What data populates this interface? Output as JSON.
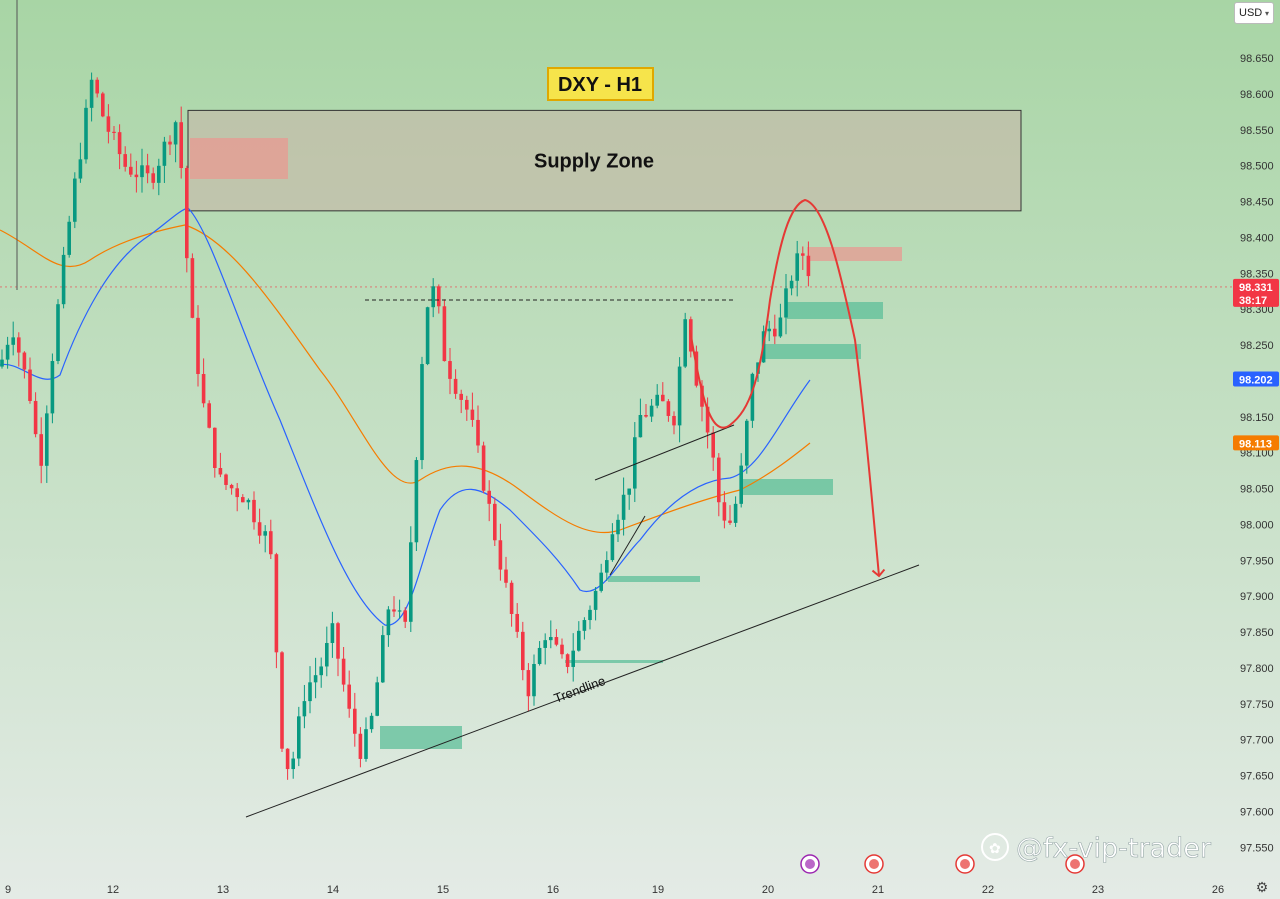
{
  "chart_data": {
    "type": "candlestick",
    "title": "DXY - H1",
    "instrument": "DXY",
    "timeframe": "H1",
    "currency": "USD",
    "x_tick_labels": [
      "9",
      "12",
      "13",
      "14",
      "15",
      "16",
      "19",
      "20",
      "21",
      "22",
      "23",
      "26"
    ],
    "y_ticks": [
      98.65,
      98.6,
      98.55,
      98.5,
      98.45,
      98.4,
      98.35,
      98.3,
      98.25,
      98.2,
      98.15,
      98.1,
      98.05,
      98.0,
      97.95,
      97.9,
      97.85,
      97.8,
      97.75,
      97.7,
      97.65,
      97.6,
      97.55
    ],
    "y_tick_labels": [
      "98.650",
      "98.600",
      "98.550",
      "98.500",
      "98.450",
      "98.400",
      "98.350",
      "98.300",
      "98.250",
      "98.200",
      "98.150",
      "98.100",
      "98.050",
      "98.000",
      "97.950",
      "97.900",
      "97.850",
      "97.800",
      "97.750",
      "97.700",
      "97.650",
      "97.600",
      "97.550"
    ],
    "ylim": [
      97.525,
      98.69
    ],
    "current_price": {
      "label": "98.331",
      "value": 98.331,
      "countdown": "38:17",
      "color": "#f23645"
    },
    "ema_fast": {
      "label": "98.202",
      "value": 98.202,
      "color": "#2962ff"
    },
    "ema_slow": {
      "label": "98.113",
      "value": 98.113,
      "color": "#f57c00"
    },
    "supply_zone": {
      "label": "Supply Zone",
      "top": 98.577,
      "bottom": 98.437
    },
    "trendline_label": "Trendline",
    "watermark": "@fx-vip-trader",
    "colors": {
      "up": "#089981",
      "down": "#f23645",
      "bg_top": "#a8d5a5",
      "bg_bottom": "#e4ebe6",
      "demand": "#5dbf9a",
      "supply_block": "#e89a92"
    }
  }
}
